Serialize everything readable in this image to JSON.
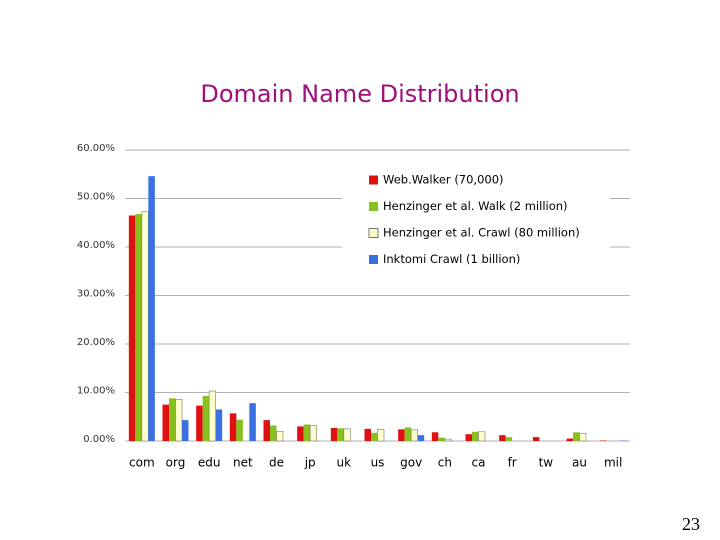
{
  "chart_data": {
    "type": "bar",
    "title": "Domain Name Distribution",
    "categories": [
      "com",
      "org",
      "edu",
      "net",
      "de",
      "jp",
      "uk",
      "us",
      "gov",
      "ch",
      "ca",
      "fr",
      "tw",
      "au",
      "mil"
    ],
    "series": [
      {
        "name": "Web.Walker (70,000)",
        "color": "#e01010",
        "values": [
          46.5,
          7.5,
          7.3,
          5.7,
          4.3,
          3.0,
          2.7,
          2.5,
          2.4,
          1.8,
          1.4,
          1.2,
          0.8,
          0.5,
          0.1
        ]
      },
      {
        "name": "Henzinger et al. Walk (2 million)",
        "color": "#88c020",
        "values": [
          46.8,
          8.8,
          9.3,
          4.4,
          3.2,
          3.4,
          2.6,
          1.7,
          2.8,
          0.7,
          1.9,
          0.8,
          0,
          1.8,
          0
        ]
      },
      {
        "name": "Henzinger et al. Crawl (80 million)",
        "color": "#ffffcc",
        "values": [
          47.3,
          8.6,
          10.3,
          0,
          2.0,
          3.2,
          2.5,
          2.4,
          2.3,
          0.4,
          1.9,
          0,
          0,
          1.6,
          0
        ]
      },
      {
        "name": "Inktomi Crawl (1 billion)",
        "color": "#3a70e0",
        "values": [
          54.6,
          4.3,
          6.5,
          7.8,
          0,
          0,
          0,
          0,
          1.2,
          0,
          0,
          0,
          0,
          0,
          0.1
        ]
      }
    ],
    "ylim": [
      0,
      60
    ],
    "yticks": [
      {
        "value": 0,
        "label": "0.00%"
      },
      {
        "value": 10,
        "label": "10.00%"
      },
      {
        "value": 20,
        "label": "20.00%"
      },
      {
        "value": 30,
        "label": "30.00%"
      },
      {
        "value": 40,
        "label": "40.00%"
      },
      {
        "value": 50,
        "label": "50.00%"
      },
      {
        "value": 60,
        "label": "60.00%"
      }
    ],
    "grid": true,
    "legend": "top-right"
  },
  "slide_number": "23"
}
